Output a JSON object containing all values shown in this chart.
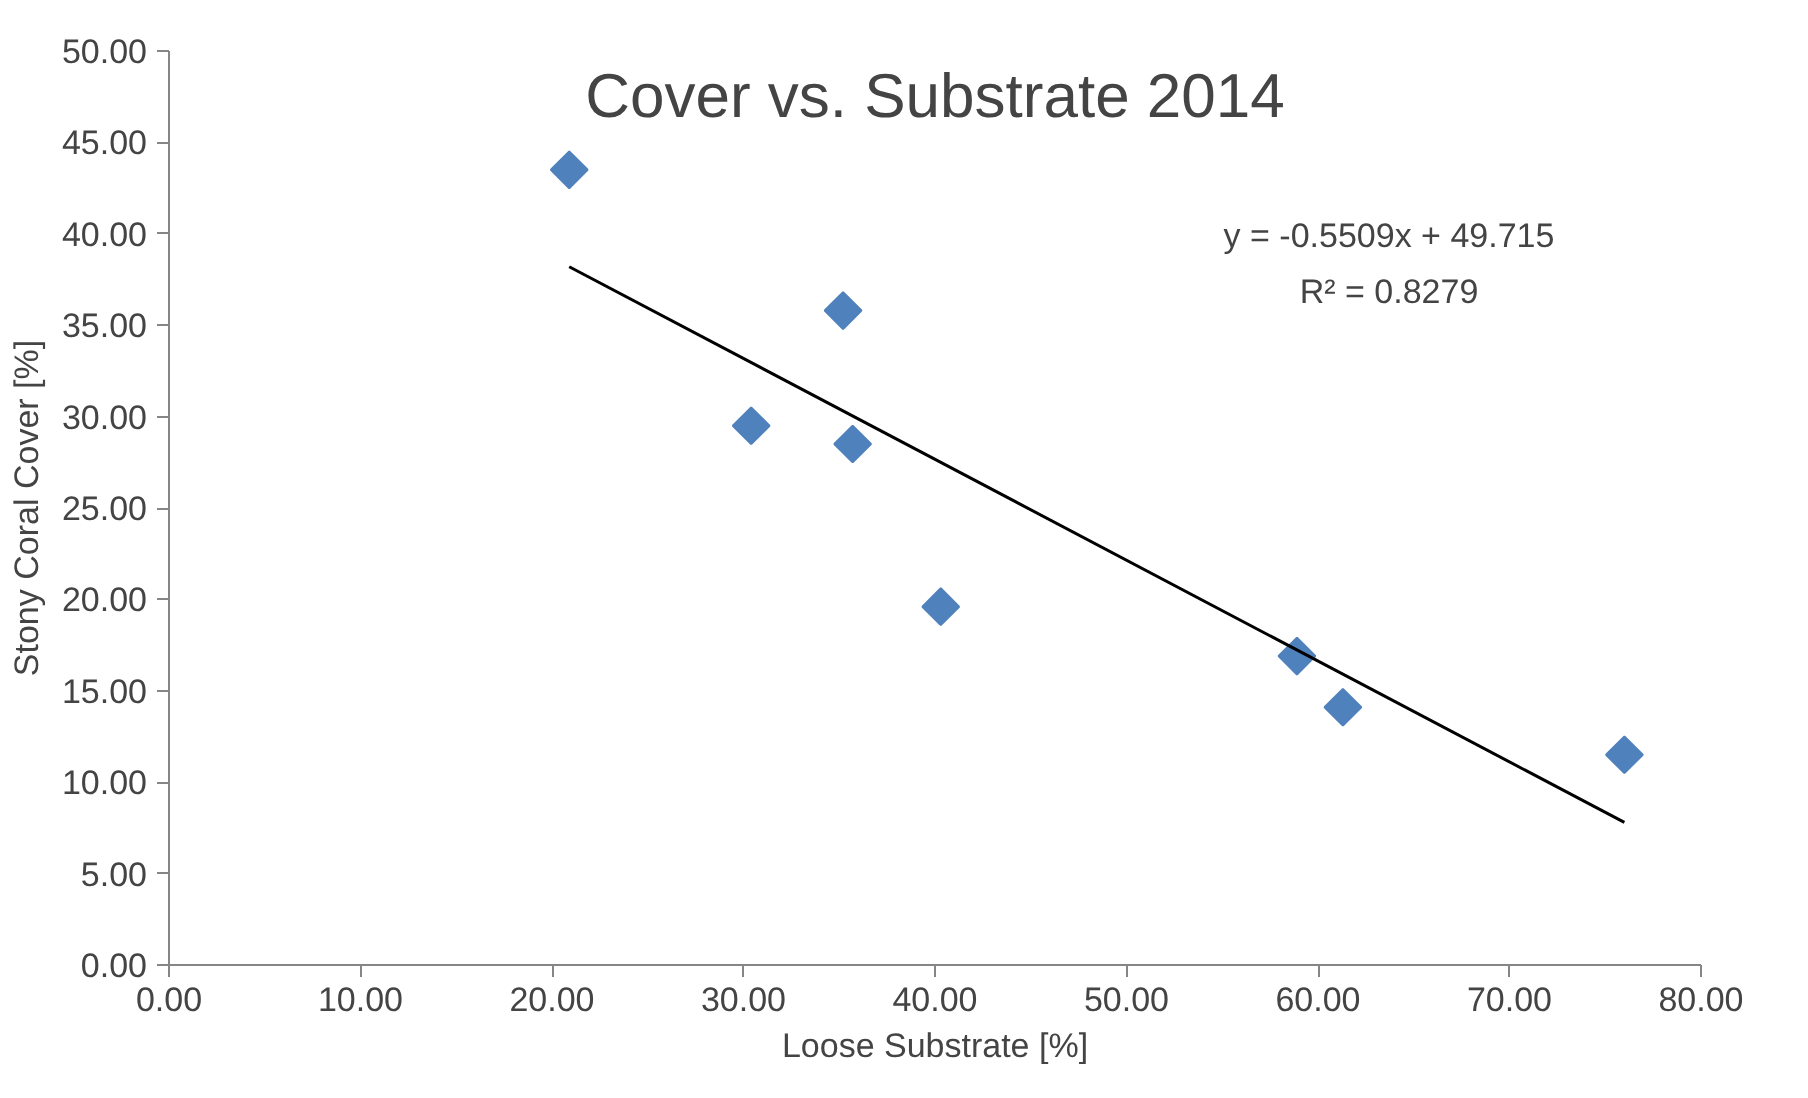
{
  "chart_data": {
    "type": "scatter",
    "title": "Cover vs. Substrate 2014",
    "xlabel": "Loose Substrate [%]",
    "ylabel": "Stony Coral Cover [%]",
    "series": [
      {
        "color": "#4f81bd",
        "marker": "diamond",
        "x": [
          20.9,
          35.2,
          30.4,
          35.7,
          40.3,
          58.9,
          61.3,
          76.0
        ],
        "values": [
          43.5,
          35.8,
          29.5,
          28.5,
          19.6,
          16.9,
          14.1,
          11.5
        ]
      },
      {
        "type": "line",
        "color": "#000000",
        "x": [
          20.9,
          76.0
        ],
        "values": [
          38.2,
          7.8
        ]
      }
    ],
    "annotations": [
      "y = -0.5509x + 49.715",
      "R² = 0.8279"
    ],
    "xlim": [
      0,
      80
    ],
    "ylim": [
      0,
      50
    ],
    "xticks": [
      {
        "value": 0,
        "label": "0.00"
      },
      {
        "value": 10,
        "label": "10.00"
      },
      {
        "value": 20,
        "label": "20.00"
      },
      {
        "value": 30,
        "label": "30.00"
      },
      {
        "value": 40,
        "label": "40.00"
      },
      {
        "value": 50,
        "label": "50.00"
      },
      {
        "value": 60,
        "label": "60.00"
      },
      {
        "value": 70,
        "label": "70.00"
      },
      {
        "value": 80,
        "label": "80.00"
      }
    ],
    "yticks": [
      {
        "value": 0,
        "label": "0.00"
      },
      {
        "value": 5,
        "label": "5.00"
      },
      {
        "value": 10,
        "label": "10.00"
      },
      {
        "value": 15,
        "label": "15.00"
      },
      {
        "value": 20,
        "label": "20.00"
      },
      {
        "value": 25,
        "label": "25.00"
      },
      {
        "value": 30,
        "label": "30.00"
      },
      {
        "value": 35,
        "label": "35.00"
      },
      {
        "value": 40,
        "label": "40.00"
      },
      {
        "value": 45,
        "label": "45.00"
      },
      {
        "value": 50,
        "label": "50.00"
      }
    ],
    "grid": false
  }
}
